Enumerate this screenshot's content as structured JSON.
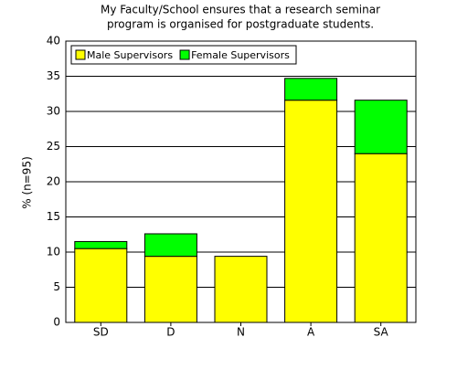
{
  "chart_data": {
    "type": "stacked-bar",
    "title": [
      "My Faculty/School ensures that a research seminar",
      "program is organised for postgraduate students."
    ],
    "ylabel": "% (n=95)",
    "categories": [
      "SD",
      "D",
      "N",
      "A",
      "SA"
    ],
    "series": [
      {
        "name": "Male Supervisors",
        "color": "#ffff00",
        "values": [
          10.5,
          9.4,
          9.4,
          31.6,
          24.0
        ]
      },
      {
        "name": "Female Supervisors",
        "color": "#00ff00",
        "values": [
          1.0,
          3.2,
          0,
          3.1,
          7.6
        ]
      }
    ],
    "ylim": [
      0,
      40
    ],
    "yticks": [
      0,
      5,
      10,
      15,
      20,
      25,
      30,
      35,
      40
    ],
    "grid": true,
    "legend": "upper left"
  }
}
